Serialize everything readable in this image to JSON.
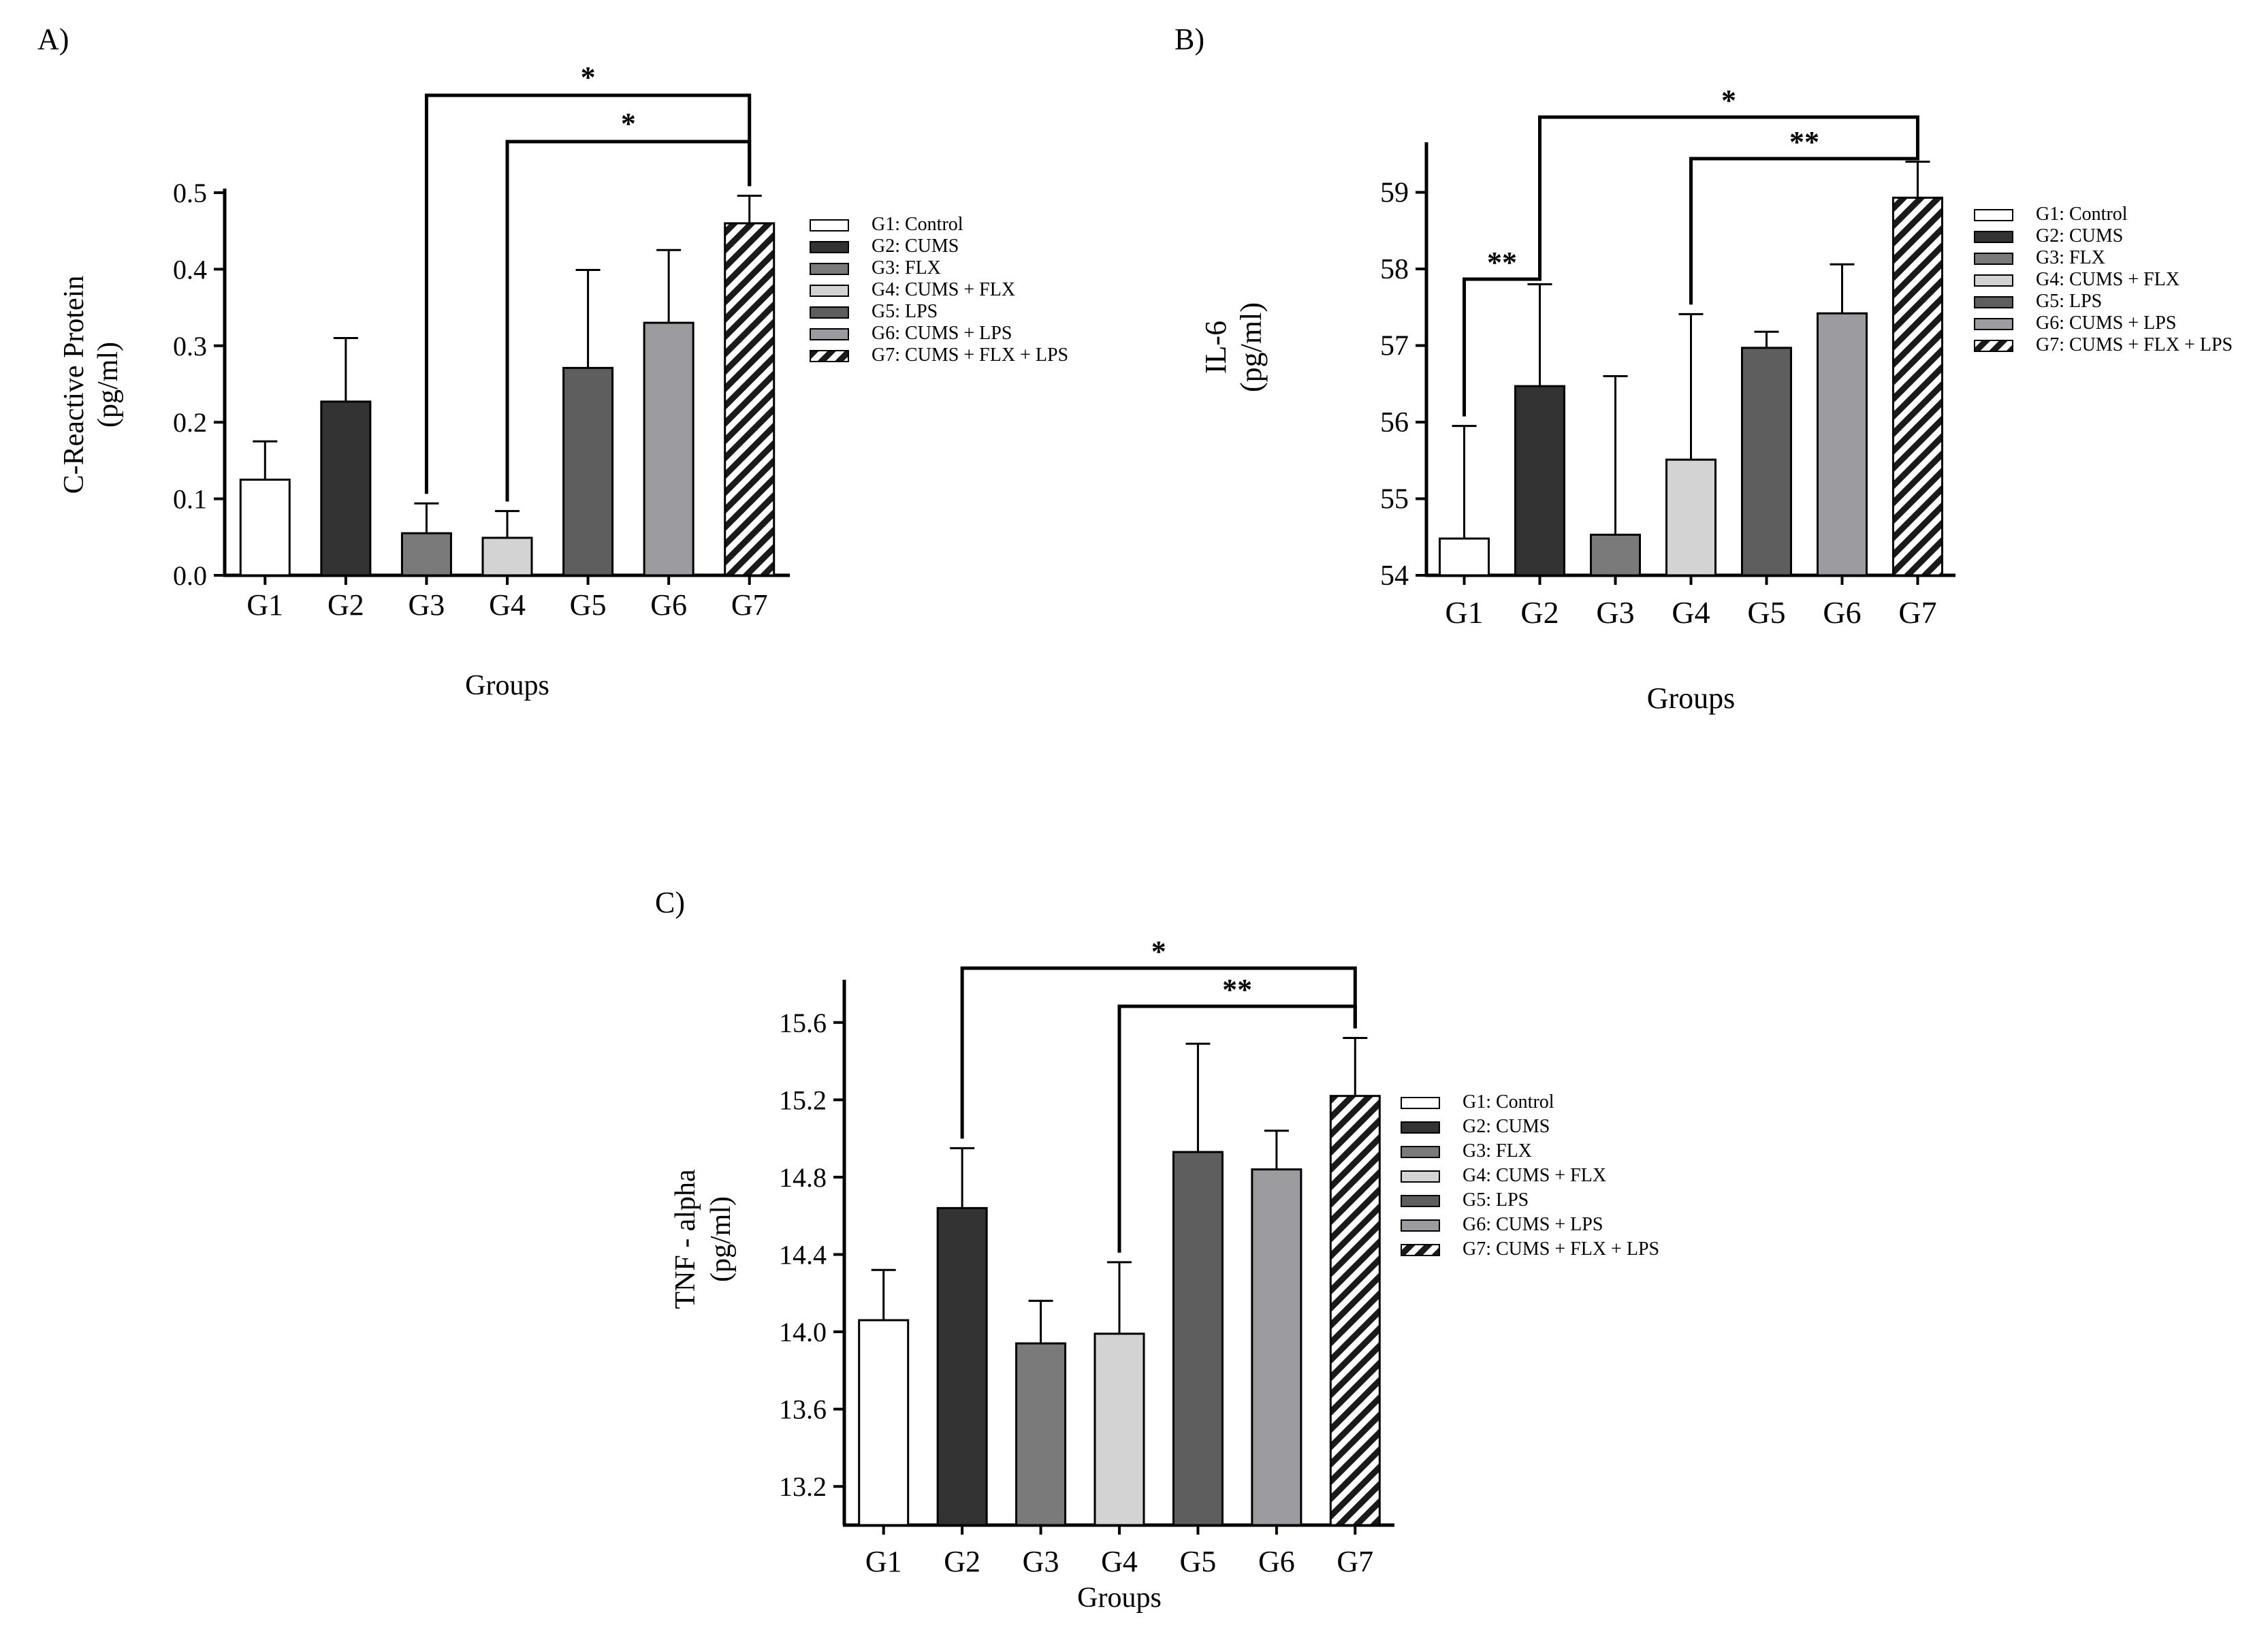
{
  "chart_data": [
    {
      "type": "bar",
      "panel_label": "A)",
      "categories": [
        "G1",
        "G2",
        "G3",
        "G4",
        "G5",
        "G6",
        "G7"
      ],
      "values": [
        0.125,
        0.227,
        0.055,
        0.049,
        0.271,
        0.33,
        0.46
      ],
      "errors": [
        0.05,
        0.083,
        0.039,
        0.035,
        0.128,
        0.095,
        0.036
      ],
      "xlabel": "Groups",
      "ylabel": [
        "C-Reactive Protein",
        "(pg/ml)"
      ],
      "ylim": [
        0,
        0.5
      ],
      "yticks": [
        "0.0",
        "0.1",
        "0.2",
        "0.3",
        "0.4",
        "0.5"
      ],
      "legend": [
        "G1: Control",
        "G2: CUMS",
        "G3: FLX",
        "G4: CUMS + FLX",
        "G5: LPS",
        "G6: CUMS + LPS",
        "G7: CUMS + FLX + LPS"
      ],
      "significance": [
        {
          "from": "G3",
          "to": "G7",
          "label": "*"
        },
        {
          "from": "G4",
          "to": "G7",
          "label": "*"
        }
      ]
    },
    {
      "type": "bar",
      "panel_label": "B)",
      "categories": [
        "G1",
        "G2",
        "G3",
        "G4",
        "G5",
        "G6",
        "G7"
      ],
      "values": [
        54.48,
        56.47,
        54.53,
        55.51,
        56.97,
        57.42,
        58.93
      ],
      "errors": [
        1.47,
        1.33,
        2.07,
        1.9,
        0.21,
        0.64,
        0.47
      ],
      "xlabel": "Groups",
      "ylabel": [
        "IL-6",
        "(pg/ml)"
      ],
      "ylim": [
        54,
        59.6
      ],
      "yticks": [
        "54",
        "55",
        "56",
        "57",
        "58",
        "59"
      ],
      "legend": [
        "G1: Control",
        "G2: CUMS",
        "G3: FLX",
        "G4: CUMS + FLX",
        "G5: LPS",
        "G6: CUMS + LPS",
        "G7: CUMS + FLX + LPS"
      ],
      "significance": [
        {
          "from": "G1",
          "to": "G2",
          "label": "**"
        },
        {
          "from": "G2",
          "to": "G7",
          "label": "*"
        },
        {
          "from": "G4",
          "to": "G7",
          "label": "**"
        }
      ]
    },
    {
      "type": "bar",
      "panel_label": "C)",
      "categories": [
        "G1",
        "G2",
        "G3",
        "G4",
        "G5",
        "G6",
        "G7"
      ],
      "values": [
        14.06,
        14.64,
        13.94,
        13.99,
        14.93,
        14.84,
        15.22
      ],
      "errors": [
        0.26,
        0.31,
        0.22,
        0.37,
        0.56,
        0.2,
        0.3
      ],
      "xlabel": "Groups",
      "ylabel": [
        "TNF - alpha",
        "(pg/ml)"
      ],
      "ylim": [
        13.0,
        15.8
      ],
      "yticks": [
        "13.2",
        "13.6",
        "14.0",
        "14.4",
        "14.8",
        "15.2",
        "15.6"
      ],
      "legend": [
        "G1: Control",
        "G2: CUMS",
        "G3: FLX",
        "G4: CUMS + FLX",
        "G5: LPS",
        "G6: CUMS + LPS",
        "G7: CUMS + FLX + LPS"
      ],
      "significance": [
        {
          "from": "G2",
          "to": "G7",
          "label": "*"
        },
        {
          "from": "G4",
          "to": "G7",
          "label": "**"
        }
      ]
    }
  ],
  "group_colors": [
    "#ffffff",
    "#333333",
    "#7a7a7a",
    "#d3d3d3",
    "#5e5e5e",
    "#9c9ca0",
    "hatch"
  ]
}
